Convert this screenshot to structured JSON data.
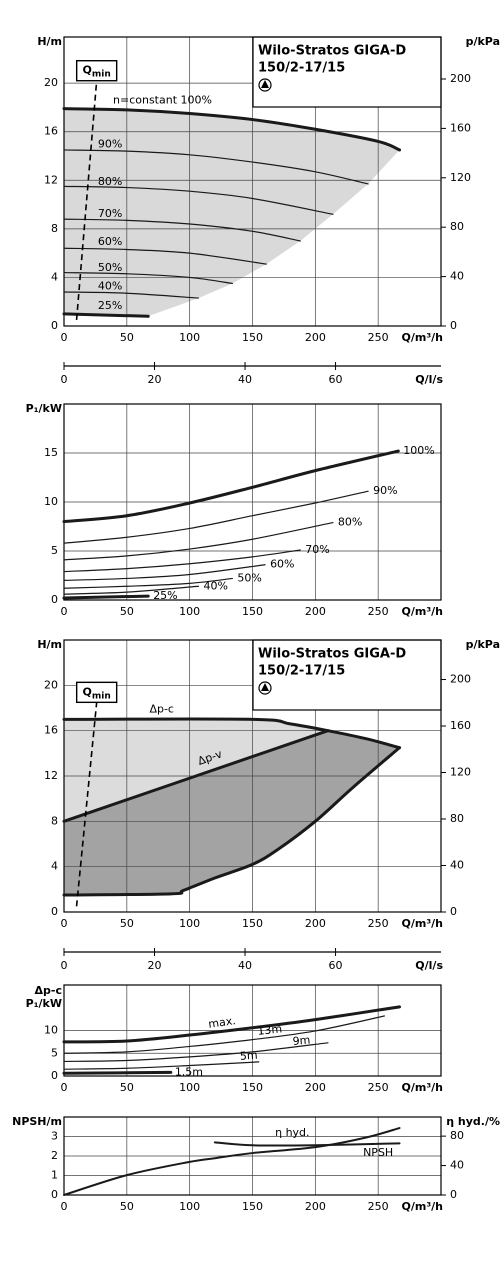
{
  "chart_data": [
    {
      "type": "line",
      "title": [
        "Wilo-Stratos GIGA-D",
        "150/2-17/15"
      ],
      "x_label": "Q/m³/h",
      "y_label": "H/m",
      "y2_label": "p/kPa",
      "xlim": [
        0,
        300
      ],
      "xticks": [
        0,
        50,
        100,
        150,
        200,
        250
      ],
      "ylim": [
        0,
        23.8
      ],
      "yticks": [
        0,
        4,
        8,
        12,
        16,
        20
      ],
      "y2lim": [
        0,
        234
      ],
      "y2ticks": [
        0,
        40,
        80,
        120,
        160,
        200
      ],
      "grid": true,
      "shade": "#d9d9d9",
      "qmin": {
        "label": [
          "Q",
          "min"
        ],
        "x": [
          10,
          26
        ],
        "values": [
          0.5,
          20.2
        ]
      },
      "series": [
        {
          "name": "n=constant 100%",
          "color": "#1a1a1a",
          "width": 3,
          "x": [
            0,
            50,
            100,
            150,
            200,
            250,
            267
          ],
          "values": [
            17.9,
            17.8,
            17.5,
            17.0,
            16.2,
            15.2,
            14.5
          ]
        },
        {
          "name": "90%",
          "color": "#1a1a1a",
          "width": 1.2,
          "x": [
            0,
            50,
            100,
            150,
            200,
            242
          ],
          "values": [
            14.5,
            14.4,
            14.1,
            13.5,
            12.7,
            11.7
          ]
        },
        {
          "name": "80%",
          "color": "#1a1a1a",
          "width": 1.2,
          "x": [
            0,
            50,
            100,
            150,
            214
          ],
          "values": [
            11.5,
            11.4,
            11.1,
            10.5,
            9.2
          ]
        },
        {
          "name": "70%",
          "color": "#1a1a1a",
          "width": 1.2,
          "x": [
            0,
            50,
            100,
            150,
            188
          ],
          "values": [
            8.8,
            8.7,
            8.4,
            7.8,
            7.0
          ]
        },
        {
          "name": "60%",
          "color": "#1a1a1a",
          "width": 1.2,
          "x": [
            0,
            50,
            100,
            161
          ],
          "values": [
            6.4,
            6.3,
            6.0,
            5.1
          ]
        },
        {
          "name": "50%",
          "color": "#1a1a1a",
          "width": 1.2,
          "x": [
            0,
            50,
            100,
            134
          ],
          "values": [
            4.4,
            4.3,
            4.0,
            3.5
          ]
        },
        {
          "name": "40%",
          "color": "#1a1a1a",
          "width": 1.2,
          "x": [
            0,
            50,
            107
          ],
          "values": [
            2.8,
            2.7,
            2.3
          ]
        },
        {
          "name": "25%",
          "color": "#1a1a1a",
          "width": 3,
          "x": [
            0,
            67
          ],
          "values": [
            1.0,
            0.8
          ]
        }
      ]
    },
    {
      "type": "axis",
      "x_label": "Q/l/s",
      "xlim": [
        0,
        83.3
      ],
      "xticks": [
        0,
        20,
        40,
        60
      ]
    },
    {
      "type": "line",
      "x_label": "Q/m³/h",
      "y_label": "P₁/kW",
      "xlim": [
        0,
        300
      ],
      "xticks": [
        0,
        50,
        100,
        150,
        200,
        250
      ],
      "ylim": [
        0,
        20
      ],
      "yticks": [
        0,
        5,
        10,
        15
      ],
      "grid": true,
      "series": [
        {
          "name": "100%",
          "color": "#1a1a1a",
          "width": 3,
          "x": [
            0,
            50,
            100,
            150,
            200,
            266
          ],
          "values": [
            8.0,
            8.6,
            9.9,
            11.5,
            13.2,
            15.2
          ]
        },
        {
          "name": "90%",
          "color": "#1a1a1a",
          "width": 1.2,
          "x": [
            0,
            50,
            100,
            150,
            200,
            242
          ],
          "values": [
            5.8,
            6.4,
            7.3,
            8.6,
            9.9,
            11.1
          ]
        },
        {
          "name": "80%",
          "color": "#1a1a1a",
          "width": 1.2,
          "x": [
            0,
            50,
            100,
            150,
            214
          ],
          "values": [
            4.1,
            4.5,
            5.2,
            6.2,
            7.9
          ]
        },
        {
          "name": "70%",
          "color": "#1a1a1a",
          "width": 1.2,
          "x": [
            0,
            50,
            100,
            150,
            188
          ],
          "values": [
            2.9,
            3.2,
            3.7,
            4.4,
            5.1
          ]
        },
        {
          "name": "60%",
          "color": "#1a1a1a",
          "width": 1.2,
          "x": [
            0,
            50,
            100,
            160
          ],
          "values": [
            2.0,
            2.2,
            2.6,
            3.6
          ]
        },
        {
          "name": "50%",
          "color": "#1a1a1a",
          "width": 1.2,
          "x": [
            0,
            50,
            100,
            134
          ],
          "values": [
            1.2,
            1.4,
            1.7,
            2.2
          ]
        },
        {
          "name": "40%",
          "color": "#1a1a1a",
          "width": 1.2,
          "x": [
            0,
            50,
            107
          ],
          "values": [
            0.6,
            0.8,
            1.4
          ]
        },
        {
          "name": "25%",
          "color": "#1a1a1a",
          "width": 3,
          "x": [
            0,
            67
          ],
          "values": [
            0.2,
            0.4
          ]
        }
      ]
    },
    {
      "type": "line",
      "title": [
        "Wilo-Stratos GIGA-D",
        "150/2-17/15"
      ],
      "x_label": "Q/m³/h",
      "y_label": "H/m",
      "y2_label": "p/kPa",
      "xlim": [
        0,
        300
      ],
      "xticks": [
        0,
        50,
        100,
        150,
        200,
        250
      ],
      "ylim": [
        0,
        24
      ],
      "yticks": [
        0,
        4,
        8,
        12,
        16,
        20
      ],
      "y2lim": [
        0,
        234
      ],
      "y2ticks": [
        0,
        40,
        80,
        120,
        160,
        200
      ],
      "grid": true,
      "shade": [
        "#dcdcdc",
        "#a3a3a3"
      ],
      "qmin": {
        "label": [
          "Q",
          "min"
        ],
        "x": [
          10,
          26
        ],
        "values": [
          0.5,
          18.5
        ]
      },
      "series": [
        {
          "name": "Δp-c",
          "color": "#1a1a1a",
          "width": 3,
          "x": [
            0,
            150,
            180,
            210,
            240,
            267
          ],
          "values": [
            17,
            17,
            16.6,
            16,
            15.3,
            14.5
          ]
        },
        {
          "name": "Δp-v",
          "color": "#1a1a1a",
          "width": 3,
          "x": [
            0,
            210
          ],
          "values": [
            8,
            16
          ]
        },
        {
          "color": "#1a1a1a",
          "width": 3,
          "x": [
            0,
            85,
            95,
            120,
            150,
            170,
            200,
            230,
            267
          ],
          "values": [
            1.5,
            1.6,
            1.9,
            3.0,
            4.2,
            5.5,
            8.0,
            11.0,
            14.5
          ]
        }
      ]
    },
    {
      "type": "axis",
      "x_label": "Q/l/s",
      "xlim": [
        0,
        83.3
      ],
      "xticks": [
        0,
        20,
        40,
        60
      ]
    },
    {
      "type": "line",
      "x_label": "Q/m³/h",
      "y_label": [
        "Δp-c",
        "P₁/kW"
      ],
      "xlim": [
        0,
        300
      ],
      "xticks": [
        0,
        50,
        100,
        150,
        200,
        250
      ],
      "ylim": [
        0,
        20
      ],
      "yticks": [
        0,
        5,
        10
      ],
      "grid": true,
      "series": [
        {
          "name": "max.",
          "color": "#1a1a1a",
          "width": 3,
          "x": [
            0,
            50,
            100,
            150,
            200,
            267
          ],
          "values": [
            7.5,
            7.7,
            9.0,
            10.6,
            12.4,
            15.2
          ]
        },
        {
          "name": "13m",
          "color": "#1a1a1a",
          "width": 1.2,
          "x": [
            0,
            50,
            100,
            150,
            200,
            255
          ],
          "values": [
            5.0,
            5.3,
            6.5,
            8.0,
            9.9,
            13.2
          ]
        },
        {
          "name": "9m",
          "color": "#1a1a1a",
          "width": 1.2,
          "x": [
            0,
            50,
            100,
            150,
            210
          ],
          "values": [
            3.2,
            3.4,
            4.2,
            5.3,
            7.3
          ]
        },
        {
          "name": "5m",
          "color": "#1a1a1a",
          "width": 1.2,
          "x": [
            0,
            50,
            100,
            155
          ],
          "values": [
            1.5,
            1.7,
            2.3,
            3.1
          ]
        },
        {
          "name": "1.5m",
          "color": "#1a1a1a",
          "width": 3,
          "x": [
            0,
            85
          ],
          "values": [
            0.6,
            0.8
          ]
        }
      ]
    },
    {
      "type": "line",
      "x_label": "Q/m³/h",
      "y_label": "NPSH/m",
      "y2_label": "η hyd./%",
      "xlim": [
        0,
        300
      ],
      "xticks": [
        0,
        50,
        100,
        150,
        200,
        250
      ],
      "ylim": [
        0,
        4
      ],
      "yticks": [
        0,
        1,
        2,
        3
      ],
      "y2lim": [
        0,
        106
      ],
      "y2ticks": [
        0,
        40,
        80
      ],
      "grid": true,
      "series": [
        {
          "name": "η hyd.",
          "axis": "y2",
          "color": "#1a1a1a",
          "width": 2,
          "x": [
            0,
            50,
            100,
            120,
            150,
            200,
            240,
            267
          ],
          "values": [
            0,
            27,
            45,
            50,
            57,
            65,
            78,
            91
          ]
        },
        {
          "name": "NPSH",
          "color": "#1a1a1a",
          "width": 2,
          "x": [
            120,
            150,
            200,
            267
          ],
          "values": [
            2.7,
            2.55,
            2.55,
            2.65
          ]
        }
      ]
    }
  ]
}
